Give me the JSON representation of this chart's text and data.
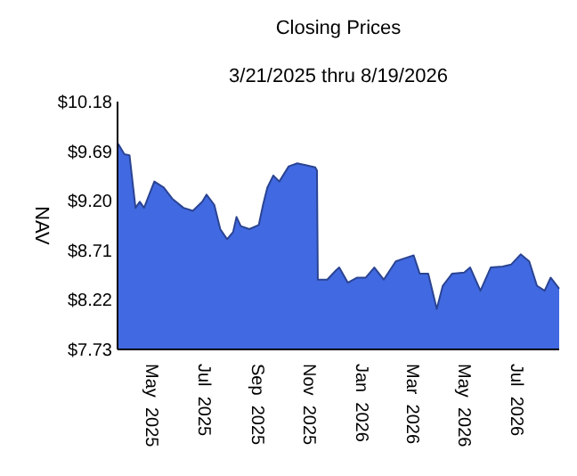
{
  "chart_data": {
    "type": "area",
    "title": "Closing Prices",
    "subtitle": "3/21/2025 thru 8/19/2026",
    "ylabel": "NAV",
    "x": [
      "2025-03-21",
      "2025-03-22",
      "2025-03-29",
      "2025-04-04",
      "2025-04-11",
      "2025-04-16",
      "2025-04-21",
      "2025-05-03",
      "2025-05-14",
      "2025-05-24",
      "2025-06-06",
      "2025-06-17",
      "2025-06-28",
      "2025-07-03",
      "2025-07-12",
      "2025-07-19",
      "2025-07-27",
      "2025-08-03",
      "2025-08-07",
      "2025-08-12",
      "2025-08-22",
      "2025-09-02",
      "2025-09-07",
      "2025-09-12",
      "2025-09-19",
      "2025-09-26",
      "2025-10-07",
      "2025-10-17",
      "2025-10-28",
      "2025-11-07",
      "2025-11-09",
      "2025-11-10",
      "2025-11-21",
      "2025-12-01",
      "2025-12-05",
      "2025-12-15",
      "2025-12-26",
      "2026-01-05",
      "2026-01-15",
      "2026-01-26",
      "2026-02-09",
      "2026-02-19",
      "2026-03-02",
      "2026-03-09",
      "2026-03-19",
      "2026-03-29",
      "2026-04-05",
      "2026-04-16",
      "2026-04-30",
      "2026-05-07",
      "2026-05-19",
      "2026-05-31",
      "2026-06-14",
      "2026-06-24",
      "2026-07-05",
      "2026-07-15",
      "2026-07-24",
      "2026-08-02",
      "2026-08-09",
      "2026-08-19"
    ],
    "series": [
      {
        "color": "#4169e1",
        "values": [
          9.72,
          9.76,
          9.66,
          9.65,
          9.13,
          9.19,
          9.13,
          9.39,
          9.33,
          9.22,
          9.13,
          9.1,
          9.19,
          9.26,
          9.16,
          8.92,
          8.82,
          8.89,
          9.04,
          8.95,
          8.92,
          8.96,
          9.16,
          9.33,
          9.45,
          9.39,
          9.54,
          9.57,
          9.55,
          9.53,
          9.5,
          8.42,
          8.42,
          8.51,
          8.54,
          8.39,
          8.44,
          8.44,
          8.54,
          8.42,
          8.6,
          8.63,
          8.66,
          8.48,
          8.48,
          8.13,
          8.36,
          8.48,
          8.49,
          8.54,
          8.31,
          8.54,
          8.55,
          8.57,
          8.67,
          8.6,
          8.36,
          8.31,
          8.44,
          8.33
        ]
      }
    ],
    "xlim": [
      "2025-03-21",
      "2026-08-19"
    ],
    "xticks": [
      {
        "value": "2025-05-01",
        "label": "May 2025"
      },
      {
        "value": "2025-07-01",
        "label": "Jul 2025"
      },
      {
        "value": "2025-09-01",
        "label": "Sep 2025"
      },
      {
        "value": "2025-11-01",
        "label": "Nov 2025"
      },
      {
        "value": "2026-01-01",
        "label": "Jan 2026"
      },
      {
        "value": "2026-03-01",
        "label": "Mar 2026"
      },
      {
        "value": "2026-05-01",
        "label": "May 2026"
      },
      {
        "value": "2026-07-01",
        "label": "Jul 2026"
      }
    ],
    "ylim": [
      7.73,
      10.18
    ],
    "yticks": [
      {
        "value": 7.73,
        "label": "$7.73"
      },
      {
        "value": 8.22,
        "label": "$8.22"
      },
      {
        "value": 8.71,
        "label": "$8.71"
      },
      {
        "value": 9.2,
        "label": "$9.20"
      },
      {
        "value": 9.69,
        "label": "$9.69"
      },
      {
        "value": 10.18,
        "label": "$10.18"
      }
    ]
  }
}
